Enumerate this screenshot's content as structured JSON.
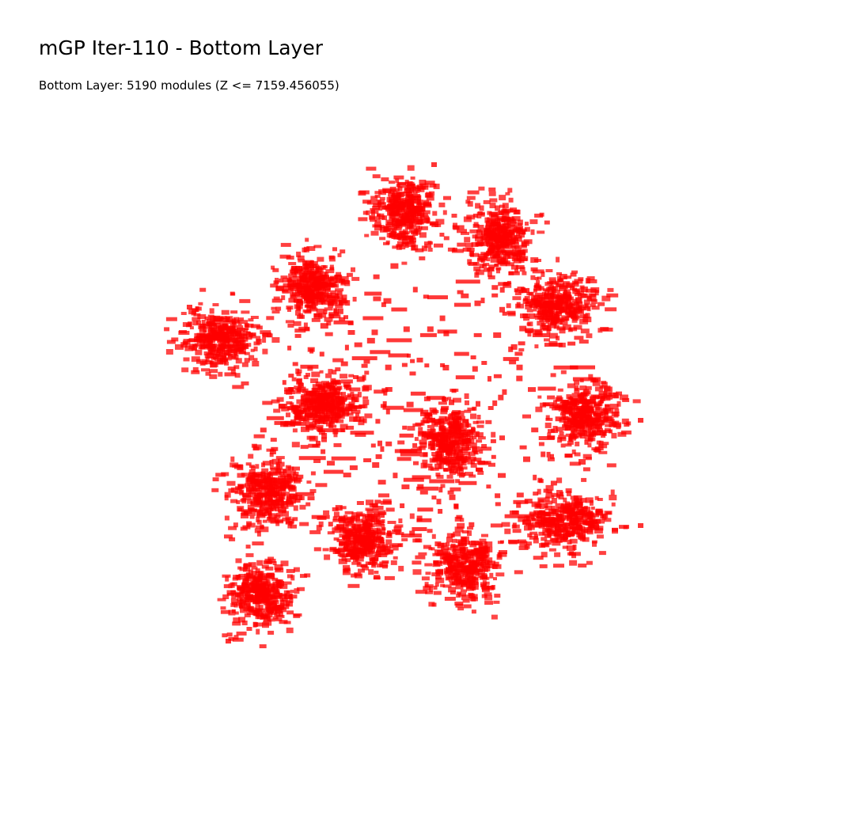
{
  "title": "mGP Iter-110 - Bottom Layer",
  "subtitle": "Bottom Layer: 5190 modules (Z <= 7159.456055)",
  "colors": {
    "module_fill": "#ff0000",
    "background": "#ffffff",
    "text": "#000000"
  }
}
